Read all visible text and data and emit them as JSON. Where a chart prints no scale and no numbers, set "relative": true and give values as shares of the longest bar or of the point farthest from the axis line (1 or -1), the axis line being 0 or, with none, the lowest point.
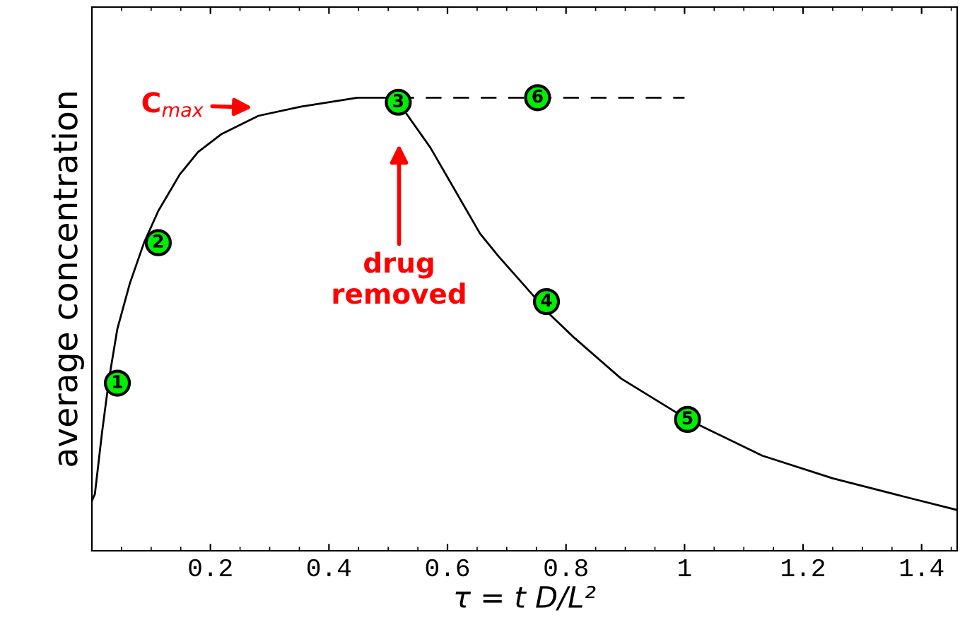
{
  "chart_data": {
    "type": "line",
    "xlabel": "τ = t D/L²",
    "ylabel": "average concentration",
    "relative": true,
    "xlim": [
      0,
      1.46
    ],
    "xticks": [
      0.2,
      0.4,
      0.6,
      0.8,
      1,
      1.2,
      1.4
    ],
    "grid": false,
    "legend": false,
    "series": [
      {
        "color": "#000000",
        "line_style": "solid",
        "marker": "none",
        "x": [
          0,
          0.005,
          0.017,
          0.029,
          0.043,
          0.064,
          0.088,
          0.112,
          0.148,
          0.179,
          0.219,
          0.281,
          0.352,
          0.448,
          0.495,
          0.517,
          0.571,
          0.655,
          0.686,
          0.774,
          0.814,
          0.893,
          1.005,
          1.131,
          1.25,
          1.369,
          1.46
        ],
        "values": [
          0.11,
          0.125,
          0.26,
          0.38,
          0.49,
          0.59,
          0.68,
          0.75,
          0.83,
          0.88,
          0.92,
          0.96,
          0.98,
          1.0,
          1.0,
          0.99,
          0.89,
          0.7,
          0.65,
          0.52,
          0.47,
          0.38,
          0.29,
          0.21,
          0.16,
          0.12,
          0.09
        ]
      },
      {
        "color": "#000000",
        "line_style": "dashed",
        "marker": "none",
        "x": [
          0.517,
          1.0
        ],
        "values": [
          1.0,
          1.0
        ]
      },
      {
        "type": "scatter",
        "color": "#00ee00",
        "marker": "circle",
        "x": [
          0.043,
          0.112,
          0.517,
          0.752,
          0.767,
          1.005
        ],
        "values": [
          0.37,
          0.68,
          0.99,
          1.0,
          0.55,
          0.29
        ]
      }
    ],
    "annotations": [
      "C$_{max}$",
      "drug\nremoved",
      {
        "text": "1",
        "x": 0.043,
        "y": 0.37
      },
      {
        "text": "2",
        "x": 0.112,
        "y": 0.68
      },
      {
        "text": "3",
        "x": 0.517,
        "y": 0.99
      },
      {
        "text": "6",
        "x": 0.752,
        "y": 1.0
      },
      {
        "text": "4",
        "x": 0.767,
        "y": 0.55
      },
      {
        "text": "5",
        "x": 1.005,
        "y": 0.29
      }
    ]
  }
}
